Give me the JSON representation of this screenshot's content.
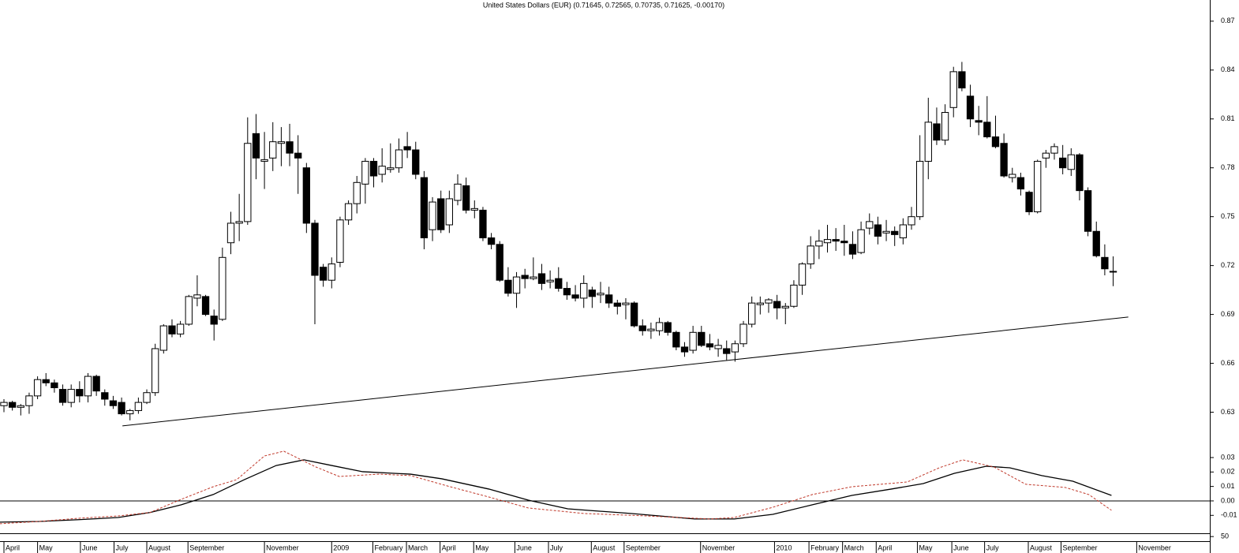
{
  "chart_data": [
    {
      "type": "candlestick",
      "title": "United States Dollars (EUR) (0.71645, 0.72565, 0.70735, 0.71625, -0.00170)",
      "up_color": "#ffffff",
      "down_color": "#000000",
      "xlim": [
        -0.47,
        143.5
      ],
      "xticks": [
        {
          "value": 0,
          "label": "April"
        },
        {
          "value": 4.0,
          "label": "May"
        },
        {
          "value": 9.1,
          "label": "June"
        },
        {
          "value": 13.1,
          "label": "July"
        },
        {
          "value": 17.0,
          "label": "August"
        },
        {
          "value": 21.9,
          "label": "September"
        },
        {
          "value": 31.0,
          "label": "November"
        },
        {
          "value": 39.0,
          "label": "2009"
        },
        {
          "value": 43.9,
          "label": "February"
        },
        {
          "value": 47.9,
          "label": "March"
        },
        {
          "value": 51.9,
          "label": "April"
        },
        {
          "value": 55.9,
          "label": "May"
        },
        {
          "value": 60.8,
          "label": "June"
        },
        {
          "value": 64.8,
          "label": "July"
        },
        {
          "value": 69.9,
          "label": "August"
        },
        {
          "value": 73.8,
          "label": "September"
        },
        {
          "value": 82.9,
          "label": "November"
        },
        {
          "value": 91.7,
          "label": "2010"
        },
        {
          "value": 95.8,
          "label": "February"
        },
        {
          "value": 99.8,
          "label": "March"
        },
        {
          "value": 103.8,
          "label": "April"
        },
        {
          "value": 108.7,
          "label": "May"
        },
        {
          "value": 112.8,
          "label": "June"
        },
        {
          "value": 116.7,
          "label": "July"
        },
        {
          "value": 121.9,
          "label": "August"
        },
        {
          "value": 125.8,
          "label": "September"
        },
        {
          "value": 134.8,
          "label": "November"
        }
      ],
      "ylim": [
        0.607,
        0.883
      ],
      "yticks": [
        0.63,
        0.66,
        0.69,
        0.72,
        0.75,
        0.78,
        0.81,
        0.84,
        0.87
      ],
      "open": [
        0.634,
        0.636,
        0.633,
        0.634,
        0.64,
        0.65,
        0.648,
        0.644,
        0.636,
        0.644,
        0.64,
        0.652,
        0.642,
        0.637,
        0.636,
        0.629,
        0.631,
        0.636,
        0.642,
        0.668,
        0.683,
        0.678,
        0.684,
        0.7,
        0.701,
        0.689,
        0.687,
        0.734,
        0.746,
        0.747,
        0.801,
        0.784,
        0.786,
        0.795,
        0.796,
        0.789,
        0.78,
        0.746,
        0.719,
        0.711,
        0.722,
        0.748,
        0.758,
        0.77,
        0.784,
        0.776,
        0.779,
        0.78,
        0.793,
        0.791,
        0.774,
        0.742,
        0.761,
        0.745,
        0.76,
        0.769,
        0.754,
        0.754,
        0.737,
        0.733,
        0.711,
        0.703,
        0.714,
        0.712,
        0.715,
        0.71,
        0.712,
        0.706,
        0.702,
        0.7,
        0.705,
        0.702,
        0.702,
        0.697,
        0.696,
        0.697,
        0.683,
        0.68,
        0.68,
        0.685,
        0.679,
        0.67,
        0.668,
        0.679,
        0.672,
        0.669,
        0.669,
        0.667,
        0.672,
        0.684,
        0.696,
        0.697,
        0.698,
        0.694,
        0.695,
        0.708,
        0.721,
        0.732,
        0.734,
        0.736,
        0.735,
        0.733,
        0.728,
        0.743,
        0.745,
        0.74,
        0.741,
        0.737,
        0.745,
        0.75,
        0.784,
        0.807,
        0.797,
        0.817,
        0.839,
        0.824,
        0.809,
        0.808,
        0.799,
        0.795,
        0.774,
        0.774,
        0.765,
        0.753,
        0.786,
        0.789,
        0.786,
        0.779,
        0.788,
        0.766,
        0.741,
        0.725,
        0.71645
      ],
      "high": [
        0.638,
        0.637,
        0.635,
        0.642,
        0.652,
        0.654,
        0.65,
        0.647,
        0.647,
        0.649,
        0.654,
        0.653,
        0.644,
        0.64,
        0.639,
        0.632,
        0.639,
        0.644,
        0.672,
        0.684,
        0.687,
        0.686,
        0.702,
        0.714,
        0.702,
        0.693,
        0.731,
        0.753,
        0.764,
        0.811,
        0.813,
        0.802,
        0.808,
        0.805,
        0.807,
        0.8,
        0.783,
        0.748,
        0.721,
        0.725,
        0.75,
        0.76,
        0.775,
        0.786,
        0.786,
        0.792,
        0.795,
        0.798,
        0.802,
        0.796,
        0.778,
        0.762,
        0.766,
        0.766,
        0.776,
        0.774,
        0.76,
        0.756,
        0.74,
        0.735,
        0.719,
        0.716,
        0.718,
        0.725,
        0.721,
        0.717,
        0.719,
        0.71,
        0.708,
        0.714,
        0.707,
        0.71,
        0.707,
        0.699,
        0.7,
        0.698,
        0.687,
        0.685,
        0.688,
        0.686,
        0.68,
        0.673,
        0.683,
        0.683,
        0.678,
        0.675,
        0.674,
        0.674,
        0.686,
        0.701,
        0.701,
        0.7,
        0.702,
        0.697,
        0.711,
        0.722,
        0.738,
        0.742,
        0.745,
        0.743,
        0.745,
        0.741,
        0.747,
        0.752,
        0.75,
        0.748,
        0.744,
        0.749,
        0.756,
        0.8,
        0.823,
        0.817,
        0.819,
        0.842,
        0.845,
        0.831,
        0.818,
        0.824,
        0.812,
        0.801,
        0.78,
        0.777,
        0.766,
        0.785,
        0.791,
        0.795,
        0.794,
        0.792,
        0.789,
        0.768,
        0.747,
        0.733,
        0.72565
      ],
      "low": [
        0.63,
        0.631,
        0.628,
        0.629,
        0.638,
        0.646,
        0.642,
        0.634,
        0.633,
        0.636,
        0.636,
        0.64,
        0.634,
        0.632,
        0.628,
        0.625,
        0.629,
        0.635,
        0.64,
        0.666,
        0.676,
        0.676,
        0.683,
        0.695,
        0.689,
        0.674,
        0.686,
        0.727,
        0.735,
        0.745,
        0.773,
        0.767,
        0.778,
        0.781,
        0.781,
        0.764,
        0.74,
        0.684,
        0.707,
        0.706,
        0.719,
        0.745,
        0.752,
        0.758,
        0.768,
        0.771,
        0.777,
        0.777,
        0.786,
        0.773,
        0.73,
        0.735,
        0.74,
        0.74,
        0.757,
        0.752,
        0.749,
        0.735,
        0.73,
        0.71,
        0.701,
        0.694,
        0.706,
        0.711,
        0.705,
        0.706,
        0.704,
        0.699,
        0.698,
        0.694,
        0.694,
        0.697,
        0.694,
        0.69,
        0.687,
        0.682,
        0.677,
        0.675,
        0.677,
        0.677,
        0.668,
        0.664,
        0.666,
        0.67,
        0.668,
        0.664,
        0.662,
        0.661,
        0.67,
        0.682,
        0.69,
        0.691,
        0.687,
        0.684,
        0.694,
        0.702,
        0.718,
        0.724,
        0.728,
        0.729,
        0.726,
        0.724,
        0.727,
        0.739,
        0.733,
        0.735,
        0.732,
        0.733,
        0.742,
        0.748,
        0.773,
        0.794,
        0.794,
        0.811,
        0.827,
        0.805,
        0.8,
        0.798,
        0.792,
        0.774,
        0.771,
        0.763,
        0.751,
        0.752,
        0.78,
        0.785,
        0.776,
        0.775,
        0.76,
        0.738,
        0.725,
        0.714,
        0.70735
      ],
      "close": [
        0.636,
        0.633,
        0.634,
        0.64,
        0.65,
        0.648,
        0.645,
        0.636,
        0.644,
        0.64,
        0.652,
        0.643,
        0.638,
        0.634,
        0.629,
        0.631,
        0.636,
        0.642,
        0.669,
        0.683,
        0.678,
        0.684,
        0.701,
        0.702,
        0.69,
        0.684,
        0.725,
        0.746,
        0.747,
        0.795,
        0.786,
        0.785,
        0.796,
        0.796,
        0.789,
        0.786,
        0.746,
        0.714,
        0.711,
        0.721,
        0.748,
        0.758,
        0.771,
        0.784,
        0.775,
        0.781,
        0.78,
        0.791,
        0.791,
        0.776,
        0.737,
        0.759,
        0.742,
        0.761,
        0.77,
        0.754,
        0.755,
        0.737,
        0.733,
        0.711,
        0.703,
        0.713,
        0.712,
        0.713,
        0.709,
        0.711,
        0.706,
        0.702,
        0.7,
        0.709,
        0.701,
        0.703,
        0.697,
        0.695,
        0.697,
        0.683,
        0.68,
        0.681,
        0.685,
        0.679,
        0.67,
        0.667,
        0.679,
        0.671,
        0.67,
        0.671,
        0.666,
        0.672,
        0.684,
        0.697,
        0.697,
        0.699,
        0.694,
        0.695,
        0.708,
        0.721,
        0.732,
        0.735,
        0.736,
        0.735,
        0.734,
        0.727,
        0.742,
        0.747,
        0.738,
        0.741,
        0.739,
        0.745,
        0.75,
        0.784,
        0.808,
        0.797,
        0.814,
        0.839,
        0.829,
        0.81,
        0.808,
        0.799,
        0.793,
        0.775,
        0.776,
        0.767,
        0.753,
        0.784,
        0.789,
        0.793,
        0.78,
        0.788,
        0.766,
        0.741,
        0.726,
        0.718,
        0.71625
      ],
      "trendline": {
        "x": [
          14.1,
          133.8
        ],
        "values": [
          0.6216,
          0.6884
        ],
        "color": "#000000"
      }
    },
    {
      "type": "line",
      "xlim": [
        -0.47,
        143.5
      ],
      "ylim": [
        -0.0224,
        0.036
      ],
      "yticks": [
        0.03,
        0.02,
        0.01,
        {
          "value": 0,
          "label": "0.00"
        },
        -0.01
      ],
      "zero_line": true,
      "series": [
        {
          "color": "#000000",
          "style": "solid",
          "x": [
            -0.5,
            4.2,
            8.9,
            13.6,
            17.4,
            21.1,
            24.9,
            28.6,
            32.4,
            35.7,
            39.0,
            42.7,
            48.4,
            52.1,
            57.7,
            62.4,
            67.1,
            74.6,
            82.2,
            86.9,
            91.5,
            96.2,
            100.9,
            105.6,
            109.4,
            113.1,
            116.9,
            119.7,
            123.5,
            127.2,
            131.8
          ],
          "values": [
            -0.0147,
            -0.0142,
            -0.013,
            -0.0115,
            -0.008,
            -0.0027,
            0.0044,
            0.0147,
            0.0245,
            0.0284,
            0.0245,
            0.0202,
            0.0185,
            0.0153,
            0.0082,
            0.0005,
            -0.0055,
            -0.0087,
            -0.0125,
            -0.0125,
            -0.0093,
            -0.0027,
            0.0038,
            0.0082,
            0.012,
            0.0191,
            0.024,
            0.0229,
            0.0175,
            0.0136,
            0.0038
          ]
        },
        {
          "color": "#c0392b",
          "style": "dashed",
          "x": [
            -0.5,
            4.2,
            8.9,
            13.6,
            17.4,
            21.1,
            24.9,
            27.7,
            31.0,
            33.3,
            37.1,
            39.9,
            44.6,
            48.4,
            53.1,
            57.7,
            62.4,
            69.0,
            76.5,
            84.0,
            86.9,
            91.5,
            96.2,
            100.9,
            107.5,
            111.3,
            114.1,
            117.8,
            121.6,
            126.3,
            129.1,
            131.8
          ],
          "values": [
            -0.0158,
            -0.0142,
            -0.012,
            -0.0104,
            -0.008,
            0.0011,
            0.0098,
            0.0147,
            0.0311,
            0.0344,
            0.0235,
            0.0169,
            0.0185,
            0.0175,
            0.0098,
            0.0027,
            -0.0049,
            -0.0087,
            -0.0104,
            -0.0125,
            -0.0115,
            -0.0044,
            0.0044,
            0.0098,
            0.0131,
            0.0229,
            0.0284,
            0.0235,
            0.0115,
            0.0093,
            0.0044,
            -0.0065
          ]
        }
      ]
    },
    {
      "type": "volume",
      "ylim": [
        0,
        60
      ],
      "yticks": [
        50
      ]
    }
  ]
}
